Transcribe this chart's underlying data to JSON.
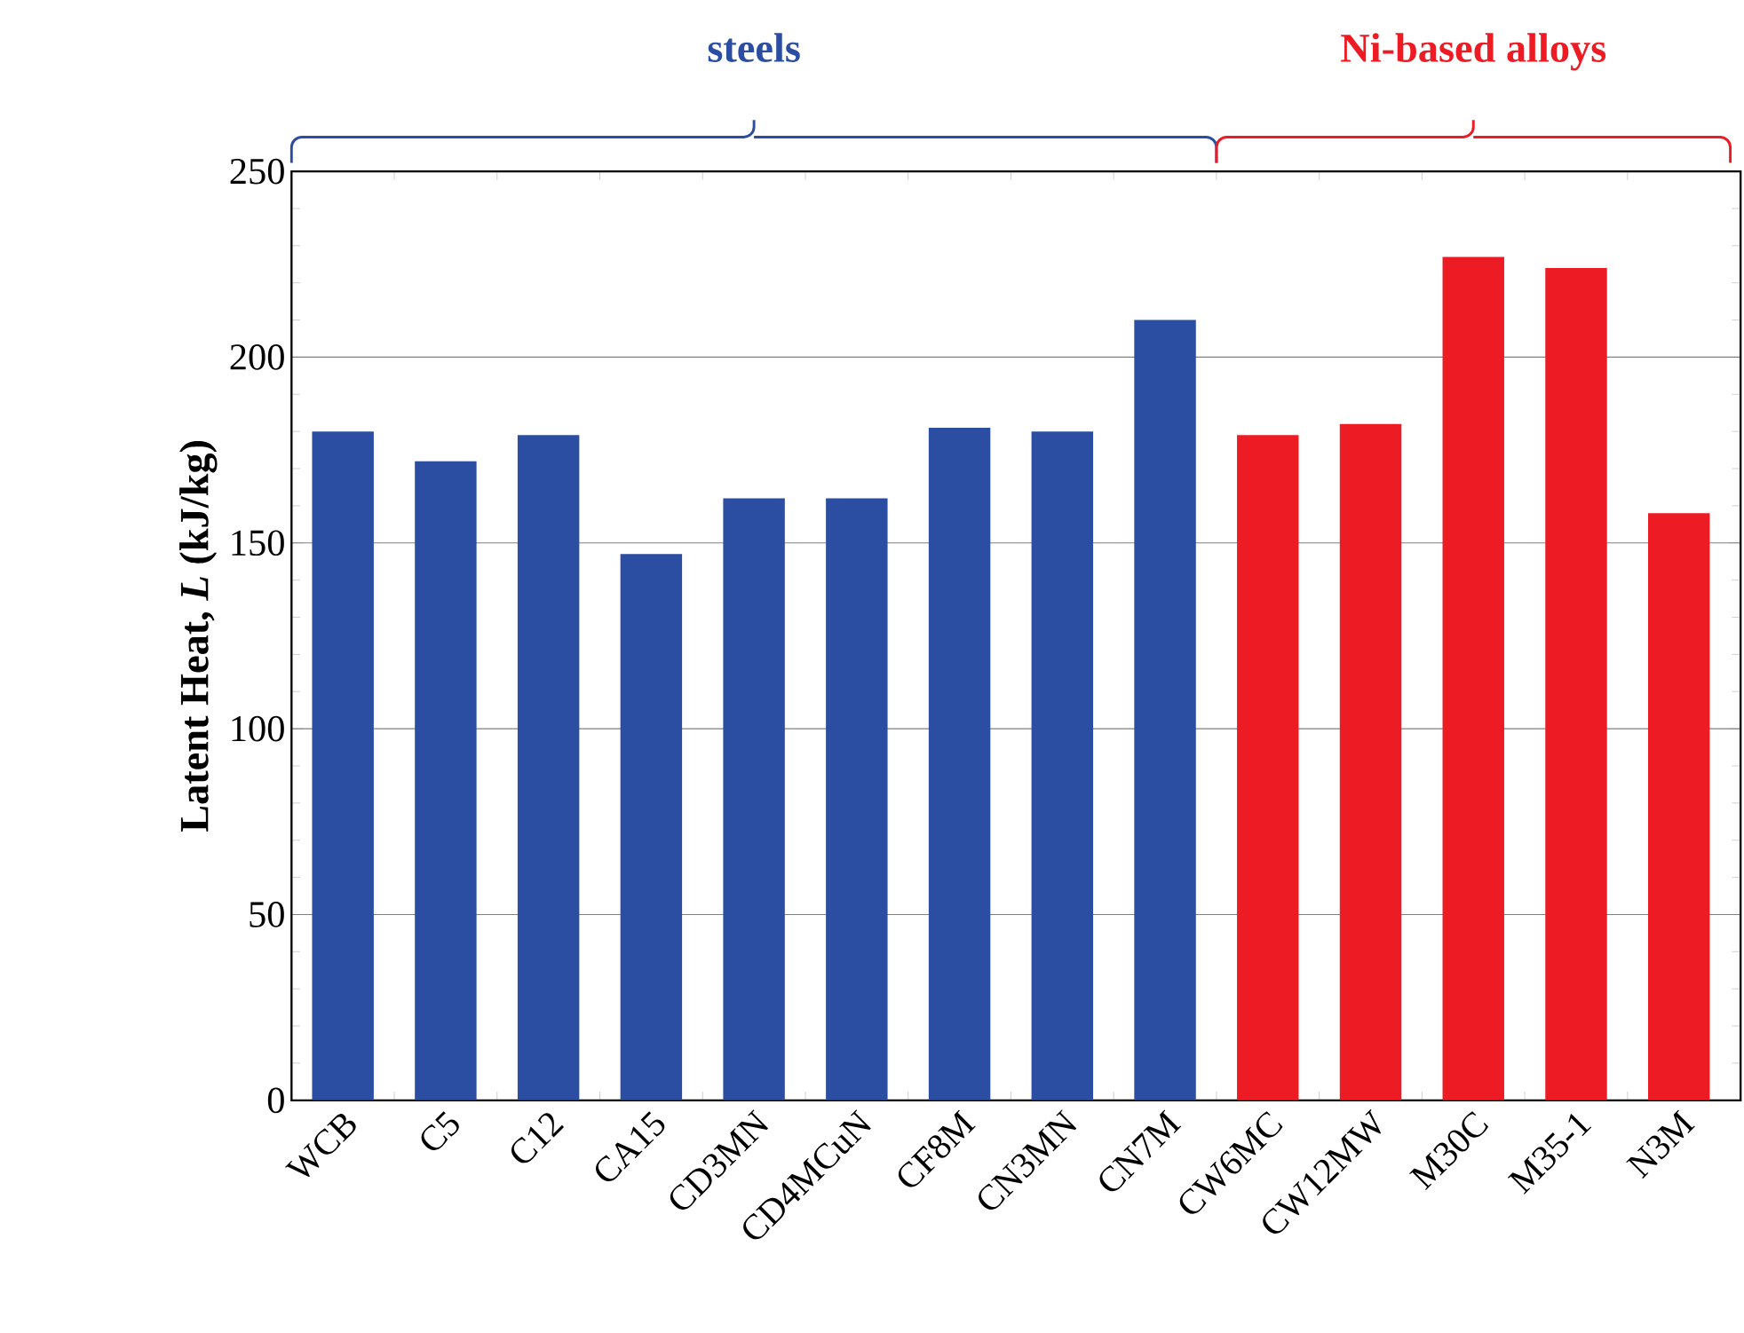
{
  "chart_data": {
    "type": "bar",
    "ylabel": "Latent Heat, *L* (kJ/kg)",
    "categories": [
      "WCB",
      "C5",
      "C12",
      "CA15",
      "CD3MN",
      "CD4MCuN",
      "CF8M",
      "CN3MN",
      "CN7M",
      "CW6MC",
      "CW12MW",
      "M30C",
      "M35-1",
      "N3M"
    ],
    "values": [
      180,
      172,
      179,
      147,
      162,
      162,
      181,
      180,
      210,
      179,
      182,
      227,
      224,
      158
    ],
    "colors": [
      "#2b4ea2",
      "#2b4ea2",
      "#2b4ea2",
      "#2b4ea2",
      "#2b4ea2",
      "#2b4ea2",
      "#2b4ea2",
      "#2b4ea2",
      "#2b4ea2",
      "#ed1c24",
      "#ed1c24",
      "#ed1c24",
      "#ed1c24",
      "#ed1c24"
    ],
    "ylim": [
      0,
      250
    ],
    "yticks": [
      0,
      50,
      100,
      150,
      200,
      250
    ],
    "grid": "y",
    "annotations": [
      "steels",
      "Ni-based alloys"
    ]
  }
}
